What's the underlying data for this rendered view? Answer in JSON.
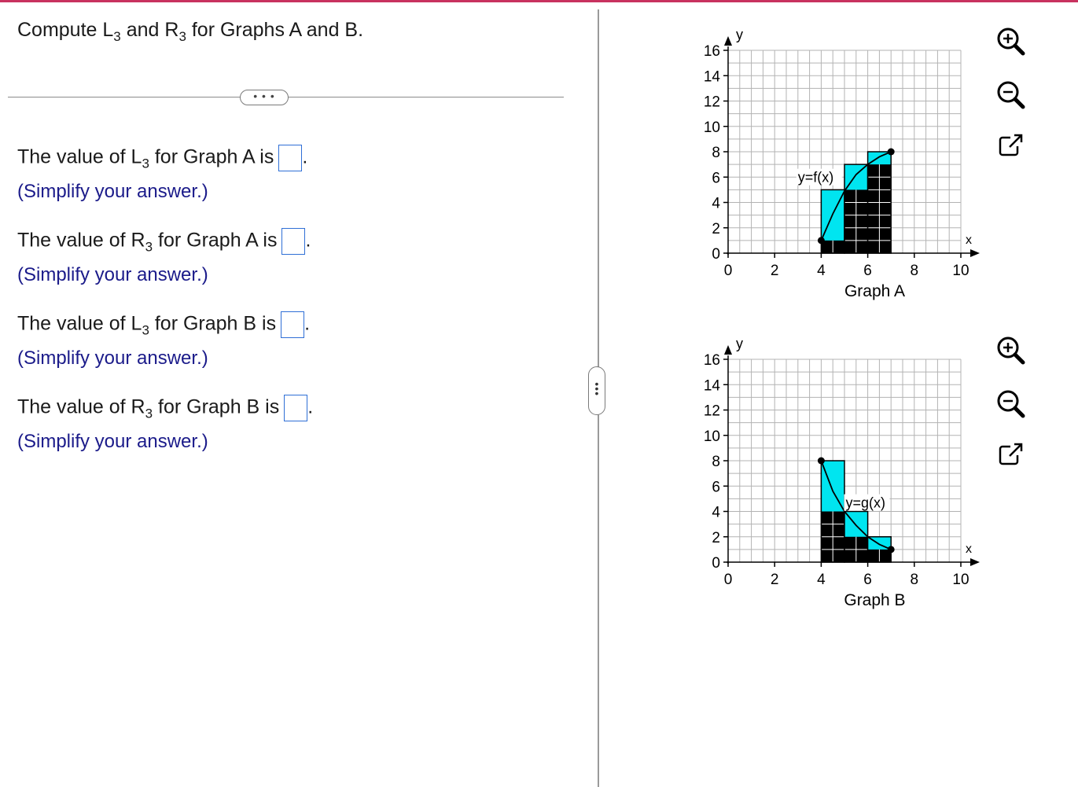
{
  "question": {
    "title_pre": "Compute L",
    "title_sub1": "3",
    "title_mid": " and R",
    "title_sub2": "3",
    "title_post": " for Graphs A and B.",
    "more_label": "• • •"
  },
  "answers": [
    {
      "pre": "The value of L",
      "sub": "3",
      "post": " for Graph A is",
      "value": "",
      "hint": "(Simplify your answer.)"
    },
    {
      "pre": "The value of R",
      "sub": "3",
      "post": " for Graph A is",
      "value": "",
      "hint": "(Simplify your answer.)"
    },
    {
      "pre": "The value of L",
      "sub": "3",
      "post": " for Graph B is",
      "value": "",
      "hint": "(Simplify your answer.)"
    },
    {
      "pre": "The value of R",
      "sub": "3",
      "post": " for Graph B is",
      "value": "",
      "hint": "(Simplify your answer.)"
    }
  ],
  "period": ".",
  "colors": {
    "accent": "#c8325f",
    "input_border": "#2f6fd6",
    "hint": "#1b1b8a",
    "fill_cyan": "#00e5f0",
    "fill_black": "#000000"
  },
  "tools": [
    "zoom-in-icon",
    "zoom-out-icon",
    "expand-icon"
  ],
  "chart_data": [
    {
      "type": "bar",
      "title": "Graph A",
      "xlabel": "x",
      "ylabel": "y",
      "xlim": [
        0,
        10
      ],
      "ylim": [
        0,
        16
      ],
      "xticks": [
        0,
        2,
        4,
        6,
        8,
        10
      ],
      "yticks": [
        0,
        2,
        4,
        6,
        8,
        10,
        12,
        14,
        16
      ],
      "grid": true,
      "curve_label": "y=f(x)",
      "curve": [
        [
          4,
          1
        ],
        [
          4.5,
          3.1
        ],
        [
          5,
          4.9
        ],
        [
          5.5,
          6.2
        ],
        [
          6,
          7
        ],
        [
          6.5,
          7.6
        ],
        [
          7,
          8
        ]
      ],
      "endpoints": [
        [
          4,
          1
        ],
        [
          7,
          8
        ]
      ],
      "rectangles": [
        {
          "x0": 4,
          "x1": 5,
          "left": 1,
          "right": 5
        },
        {
          "x0": 5,
          "x1": 6,
          "left": 5,
          "right": 7
        },
        {
          "x0": 6,
          "x1": 7,
          "left": 7,
          "right": 8
        }
      ]
    },
    {
      "type": "bar",
      "title": "Graph B",
      "xlabel": "x",
      "ylabel": "y",
      "xlim": [
        0,
        10
      ],
      "ylim": [
        0,
        16
      ],
      "xticks": [
        0,
        2,
        4,
        6,
        8,
        10
      ],
      "yticks": [
        0,
        2,
        4,
        6,
        8,
        10,
        12,
        14,
        16
      ],
      "grid": true,
      "curve_label": "y=g(x)",
      "curve": [
        [
          4,
          8
        ],
        [
          4.5,
          5.6
        ],
        [
          5,
          4
        ],
        [
          5.5,
          2.9
        ],
        [
          6,
          2
        ],
        [
          6.5,
          1.4
        ],
        [
          7,
          1
        ]
      ],
      "endpoints": [
        [
          4,
          8
        ],
        [
          7,
          1
        ]
      ],
      "rectangles": [
        {
          "x0": 4,
          "x1": 5,
          "left": 8,
          "right": 4
        },
        {
          "x0": 5,
          "x1": 6,
          "left": 4,
          "right": 2
        },
        {
          "x0": 6,
          "x1": 7,
          "left": 2,
          "right": 1
        }
      ]
    }
  ]
}
